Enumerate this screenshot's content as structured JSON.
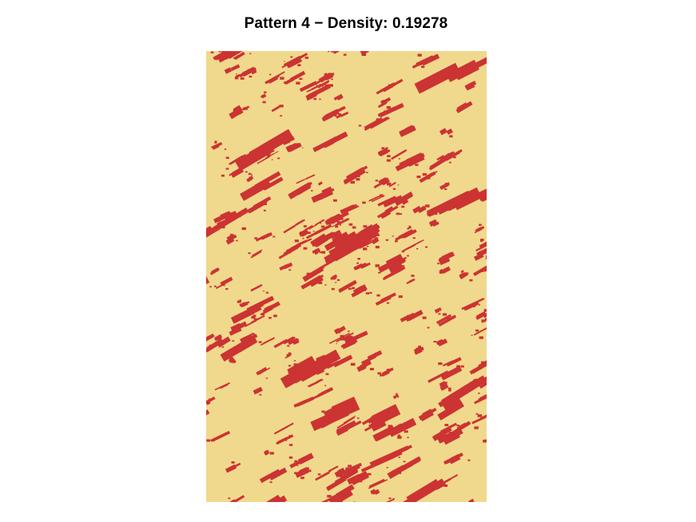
{
  "figure": {
    "title": "Pattern 4 − Density: 0.19278"
  },
  "pattern": {
    "density": 0.19278,
    "background_color": "#f0d98d",
    "fill_color": "#cc3333",
    "texture": "diagonal streaks rising to the upper right"
  }
}
